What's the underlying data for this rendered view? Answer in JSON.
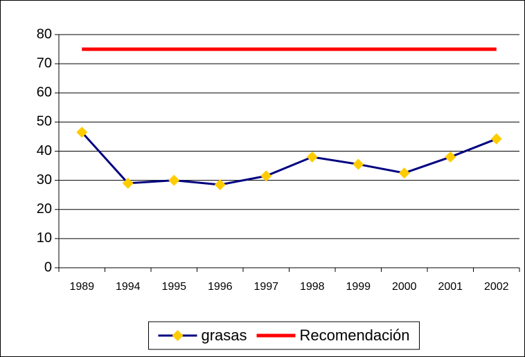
{
  "chart_data": {
    "type": "line",
    "categories": [
      "1989",
      "1994",
      "1995",
      "1996",
      "1997",
      "1998",
      "1999",
      "2000",
      "2001",
      "2002"
    ],
    "series": [
      {
        "name": "grasas",
        "color": "#000080",
        "marker": "diamond",
        "marker_color": "#ffcc00",
        "values": [
          46.5,
          29,
          30,
          28.5,
          31.5,
          38,
          35.5,
          32.5,
          38,
          44.2
        ]
      },
      {
        "name": "Recomendación",
        "color": "#ff0000",
        "values": [
          75,
          75,
          75,
          75,
          75,
          75,
          75,
          75,
          75,
          75
        ]
      }
    ],
    "ylim": [
      0,
      80
    ],
    "yticks": [
      0,
      10,
      20,
      30,
      40,
      50,
      60,
      70,
      80
    ],
    "grid": true,
    "legend": "bottom"
  }
}
